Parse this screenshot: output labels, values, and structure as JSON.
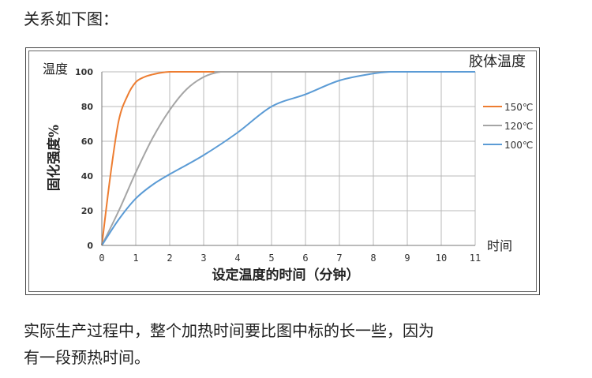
{
  "intro_text": "关系如下图：",
  "footer_lines": [
    "实际生产过程中，整个加热时间要比图中标的长一些，因为",
    "有一段预热时间。"
  ],
  "chart_data": {
    "type": "line",
    "title": "胶体温度",
    "xlabel": "设定温度的时间（分钟）",
    "ylabel": "固化强度%",
    "x_unit_label": "时间",
    "y_unit_label": "温度",
    "xlim": [
      0,
      11
    ],
    "ylim": [
      0,
      100
    ],
    "x_ticks": [
      "0",
      "1",
      "2",
      "3",
      "4",
      "5",
      "6",
      "7",
      "8",
      "9",
      "10",
      "11"
    ],
    "y_ticks": [
      "0",
      "20",
      "40",
      "60",
      "80",
      "100"
    ],
    "grid": true,
    "legend_position": "right",
    "series": [
      {
        "name": "150℃",
        "color": "#ed7d31",
        "x": [
          0,
          0.25,
          0.5,
          0.75,
          1.0,
          1.25,
          1.5,
          1.75,
          2.0,
          2.5,
          3.0,
          11
        ],
        "y": [
          0,
          40,
          72,
          86,
          94,
          97,
          98.5,
          99.5,
          100,
          100,
          100,
          100
        ]
      },
      {
        "name": "120℃",
        "color": "#a5a5a5",
        "x": [
          0,
          0.5,
          1.0,
          1.5,
          2.0,
          2.5,
          3.0,
          3.5,
          4.0,
          11
        ],
        "y": [
          0,
          20,
          42,
          62,
          78,
          90,
          97,
          100,
          100,
          100
        ]
      },
      {
        "name": "100℃",
        "color": "#5b9bd5",
        "x": [
          0,
          0.5,
          1.0,
          1.5,
          2.0,
          3.0,
          4.0,
          5.0,
          6.0,
          7.0,
          8.0,
          8.5,
          9.0,
          10.0,
          11
        ],
        "y": [
          0,
          15,
          27,
          35,
          41,
          52,
          65,
          80,
          87,
          95,
          99,
          100,
          100,
          100,
          100
        ]
      }
    ]
  }
}
